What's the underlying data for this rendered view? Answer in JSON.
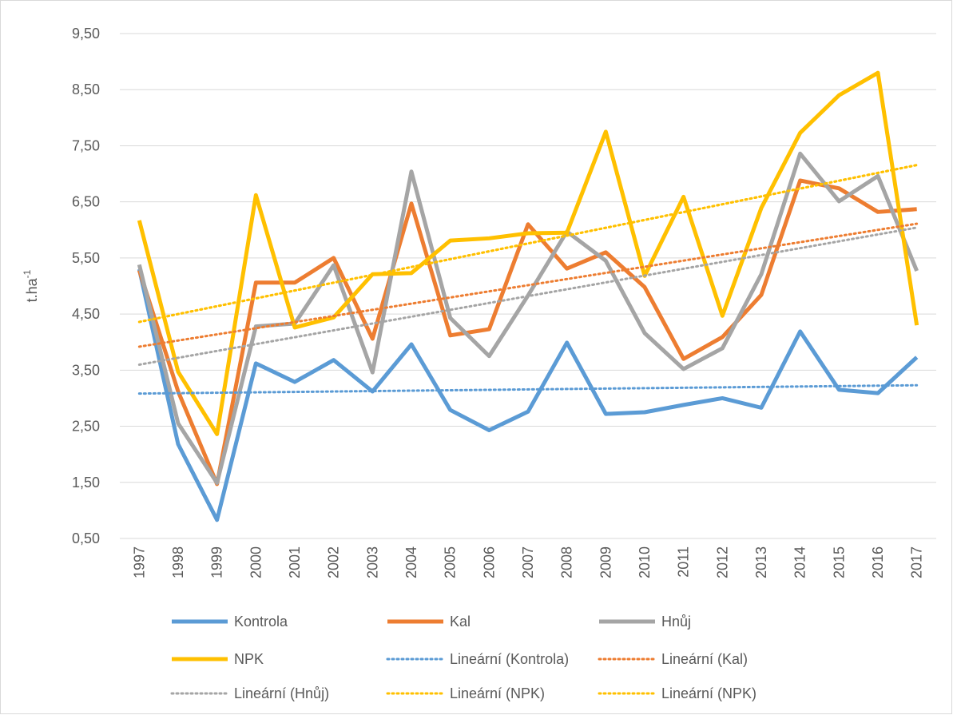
{
  "chart_data": {
    "type": "line",
    "ylabel": "t.ha",
    "ylabel_exponent": "-1",
    "categories": [
      "1997",
      "1998",
      "1999",
      "2000",
      "2001",
      "2002",
      "2003",
      "2004",
      "2005",
      "2006",
      "2007",
      "2008",
      "2009",
      "2010",
      "2011",
      "2012",
      "2013",
      "2014",
      "2015",
      "2016",
      "2017"
    ],
    "series": [
      {
        "name": "Kontrola",
        "color": "#5b9bd5",
        "values": [
          5.3,
          2.18,
          0.83,
          3.62,
          3.29,
          3.68,
          3.12,
          3.96,
          2.79,
          2.43,
          2.76,
          3.99,
          2.72,
          2.75,
          2.88,
          3.0,
          2.83,
          4.19,
          3.15,
          3.09,
          3.73
        ],
        "trendline_names": [
          "Lineární (Kontrola)"
        ]
      },
      {
        "name": "Kal",
        "color": "#ed7d31",
        "values": [
          5.28,
          3.12,
          1.47,
          5.06,
          5.06,
          5.5,
          4.06,
          6.47,
          4.12,
          4.23,
          6.1,
          5.31,
          5.6,
          4.98,
          3.7,
          4.09,
          4.84,
          6.88,
          6.74,
          6.32,
          6.37
        ],
        "trendline_names": [
          "Lineární (Kal)"
        ]
      },
      {
        "name": "Hnůj",
        "color": "#a5a5a5",
        "values": [
          5.38,
          2.55,
          1.49,
          4.28,
          4.33,
          5.37,
          3.46,
          7.04,
          4.43,
          3.75,
          4.83,
          5.97,
          5.45,
          4.16,
          3.52,
          3.89,
          5.21,
          7.36,
          6.51,
          6.96,
          5.27
        ],
        "trendline_names": [
          "Lineární (Hnůj)"
        ]
      },
      {
        "name": "NPK",
        "color": "#ffc000",
        "values": [
          6.17,
          3.47,
          2.36,
          6.62,
          4.26,
          4.44,
          5.21,
          5.23,
          5.81,
          5.85,
          5.94,
          5.95,
          7.75,
          5.18,
          6.59,
          4.47,
          6.39,
          7.73,
          8.4,
          8.8,
          4.3
        ],
        "trendline_names": [
          "Lineární (NPK)",
          "Lineární (NPK)"
        ]
      }
    ],
    "ylim": [
      0.5,
      9.5
    ],
    "yticks": [
      {
        "value": 0.5,
        "label": "0,50"
      },
      {
        "value": 1.5,
        "label": "1,50"
      },
      {
        "value": 2.5,
        "label": "2,50"
      },
      {
        "value": 3.5,
        "label": "3,50"
      },
      {
        "value": 4.5,
        "label": "4,50"
      },
      {
        "value": 5.5,
        "label": "5,50"
      },
      {
        "value": 6.5,
        "label": "6,50"
      },
      {
        "value": 7.5,
        "label": "7,50"
      },
      {
        "value": 8.5,
        "label": "8,50"
      },
      {
        "value": 9.5,
        "label": "9,50"
      }
    ],
    "grid": true
  }
}
